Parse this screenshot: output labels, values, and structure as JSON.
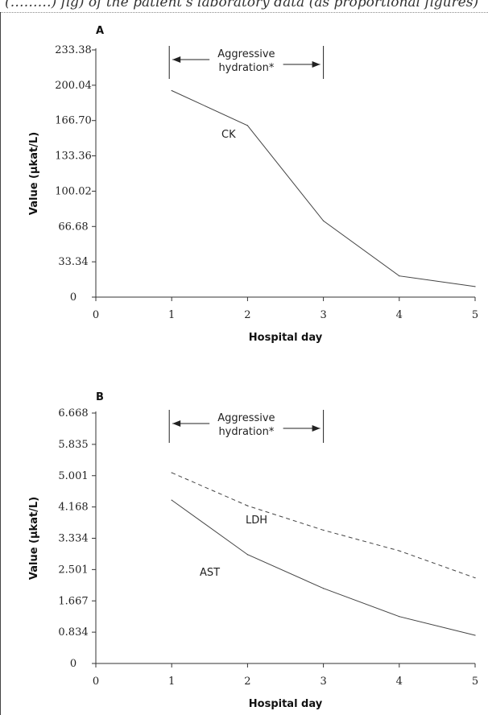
{
  "caption": "(………) fig) of the patient's laboratory data (as proportional figures)",
  "chart_data": [
    {
      "type": "line",
      "panel": "A",
      "xlabel": "Hospital day",
      "ylabel": "Value (µkat/L)",
      "xlim": [
        0,
        5
      ],
      "ylim": [
        0,
        233.38
      ],
      "xticks": [
        "0",
        "1",
        "2",
        "3",
        "4",
        "5"
      ],
      "yticks": [
        "0",
        "33.34",
        "66.68",
        "100.02",
        "133.36",
        "166.70",
        "200.04",
        "233.38"
      ],
      "annotation": {
        "line1": "Aggressive",
        "line2": "hydration*",
        "from_day": 1,
        "to_day": 3
      },
      "series": [
        {
          "name": "CK",
          "style": "solid",
          "x": [
            1,
            2,
            3,
            4,
            5
          ],
          "values": [
            195,
            162,
            72,
            20,
            10
          ]
        }
      ]
    },
    {
      "type": "line",
      "panel": "B",
      "xlabel": "Hospital day",
      "ylabel": "Value (µkat/L)",
      "xlim": [
        0,
        5
      ],
      "ylim": [
        0,
        6.668
      ],
      "xticks": [
        "0",
        "1",
        "2",
        "3",
        "4",
        "5"
      ],
      "yticks": [
        "0",
        "0.834",
        "1.667",
        "2.501",
        "3.334",
        "4.168",
        "5.001",
        "5.835",
        "6.668"
      ],
      "annotation": {
        "line1": "Aggressive",
        "line2": "hydration*",
        "from_day": 1,
        "to_day": 3
      },
      "series": [
        {
          "name": "LDH",
          "style": "dashed",
          "x": [
            1,
            2,
            3,
            4,
            5
          ],
          "values": [
            5.08,
            4.2,
            3.55,
            3.0,
            2.28
          ]
        },
        {
          "name": "AST",
          "style": "solid",
          "x": [
            1,
            2,
            3,
            4,
            5
          ],
          "values": [
            4.35,
            2.9,
            2.0,
            1.25,
            0.75
          ]
        }
      ]
    }
  ]
}
